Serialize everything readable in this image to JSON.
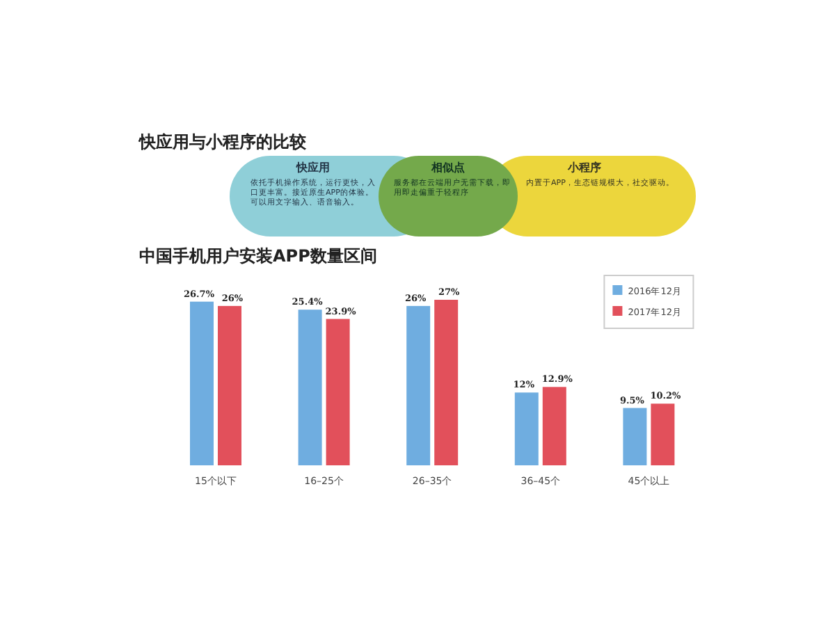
{
  "chart_data": [
    {
      "type": "other",
      "title": "快应用与小程序的比较",
      "annotations": [
        "快应用",
        "依托手机操作系统，运行更快，入口更丰富。接近原生APP的体验。可以用文字输入、语音输入。",
        "相似点",
        "服务都在云端用户无需下载，即用即走偏重于轻程序",
        "小程序",
        "内置于APP，生态链规模大，社交驱动。"
      ]
    },
    {
      "type": "bar",
      "title": "中国手机用户安装APP数量区间",
      "categories": [
        "15个以下",
        "16–25个",
        "26–35个",
        "36–45个",
        "45个以上"
      ],
      "series": [
        {
          "name": "2016年12月",
          "color": "#6fade0",
          "values": [
            26.7,
            25.4,
            26,
            12,
            9.5
          ],
          "value_labels": [
            "26.7%",
            "25.4%",
            "26%",
            "12%",
            "9.5%"
          ]
        },
        {
          "name": "2017年12月",
          "color": "#e2505b",
          "values": [
            26,
            23.9,
            27,
            12.9,
            10.2
          ],
          "value_labels": [
            "26%",
            "23.9%",
            "27%",
            "12.9%",
            "10.2%"
          ]
        }
      ],
      "legend": "top right"
    }
  ]
}
